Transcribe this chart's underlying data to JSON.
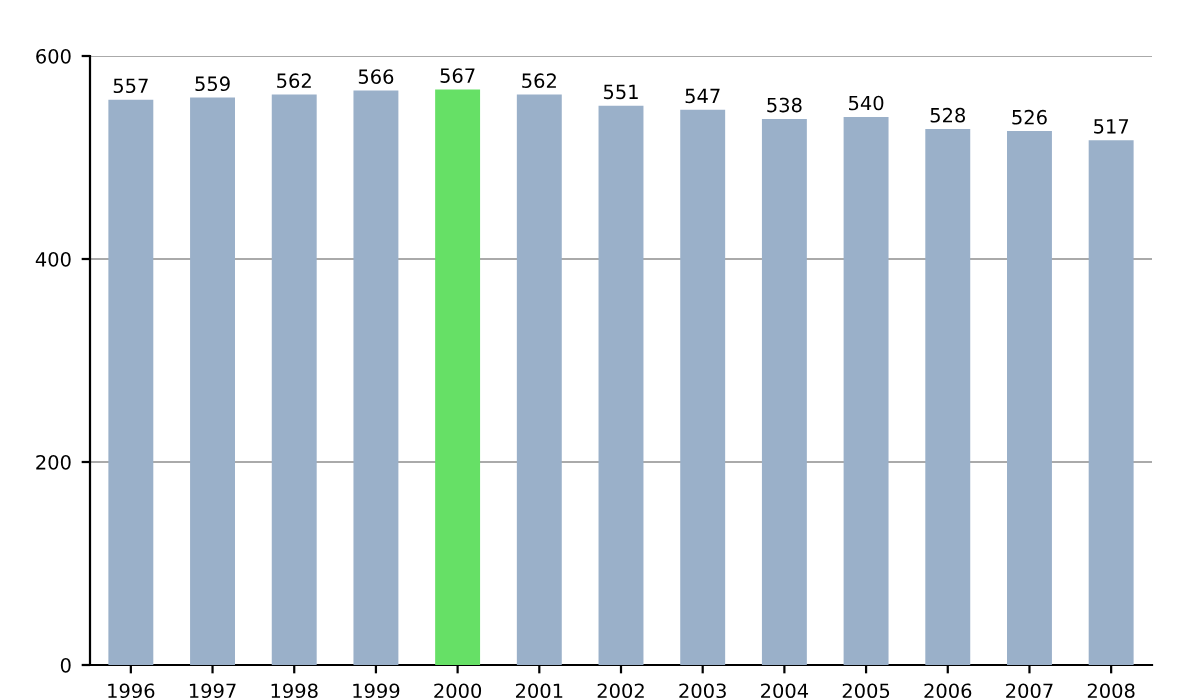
{
  "chart_data": {
    "type": "bar",
    "categories": [
      "1996",
      "1997",
      "1998",
      "1999",
      "2000",
      "2001",
      "2002",
      "2003",
      "2004",
      "2005",
      "2006",
      "2007",
      "2008"
    ],
    "values": [
      557,
      559,
      562,
      566,
      567,
      562,
      551,
      547,
      538,
      540,
      528,
      526,
      517
    ],
    "colors": [
      "#9ab0c9",
      "#9ab0c9",
      "#9ab0c9",
      "#9ab0c9",
      "#66e066",
      "#9ab0c9",
      "#9ab0c9",
      "#9ab0c9",
      "#9ab0c9",
      "#9ab0c9",
      "#9ab0c9",
      "#9ab0c9",
      "#9ab0c9"
    ],
    "ylim": [
      0,
      600
    ],
    "yticks": [
      0,
      200,
      400,
      600
    ],
    "grid": "y",
    "data_labels": true
  }
}
